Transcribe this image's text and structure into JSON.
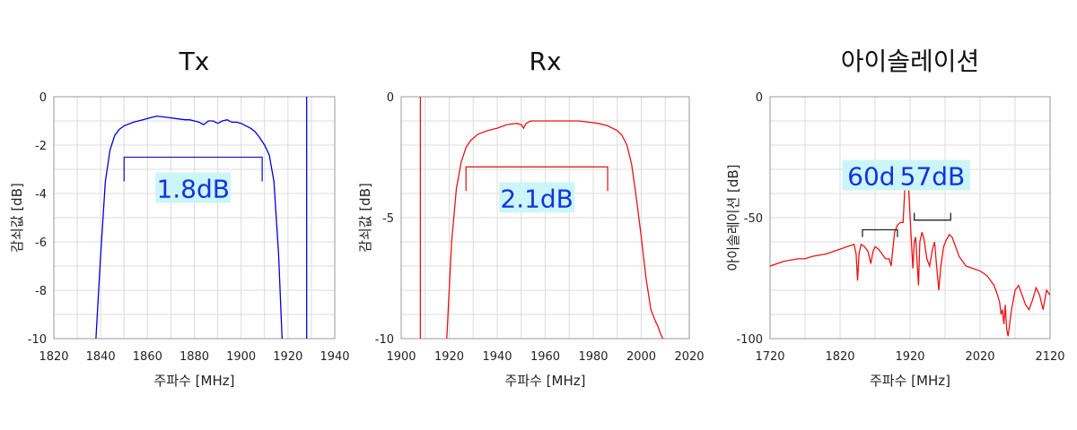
{
  "chart_data": [
    {
      "type": "line",
      "title": "Tx",
      "xlabel": "주파수 [MHz]",
      "ylabel": "감쇠값 [dB]",
      "xlim": [
        1820,
        1940
      ],
      "ylim": [
        -10,
        0
      ],
      "xticks": [
        1820,
        1840,
        1860,
        1880,
        1900,
        1920,
        1940
      ],
      "yticks": [
        0,
        -2,
        -4,
        -6,
        -8,
        -10
      ],
      "ytick_labels": [
        "0",
        "-2",
        "-4",
        "-6",
        "-8",
        "-10"
      ],
      "color": "#0000dd",
      "series": [
        {
          "x": [
            1838,
            1840,
            1842,
            1844,
            1846,
            1848,
            1850,
            1854,
            1858,
            1862,
            1864,
            1868,
            1872,
            1876,
            1878,
            1880,
            1882,
            1884,
            1886,
            1888,
            1890,
            1892,
            1894,
            1896,
            1898,
            1900,
            1902,
            1904,
            1906,
            1908,
            1910,
            1912,
            1914,
            1916,
            1917.5
          ],
          "y": [
            -10,
            -6.5,
            -3.5,
            -2.2,
            -1.6,
            -1.35,
            -1.2,
            -1.05,
            -0.95,
            -0.85,
            -0.8,
            -0.85,
            -0.9,
            -0.95,
            -0.95,
            -1.0,
            -1.05,
            -1.15,
            -1.0,
            -1.0,
            -1.1,
            -1.0,
            -0.95,
            -1.05,
            -1.05,
            -1.1,
            -1.2,
            -1.3,
            -1.45,
            -1.7,
            -2.0,
            -2.4,
            -3.5,
            -6.5,
            -10
          ]
        },
        {
          "x": [
            1928,
            1928
          ],
          "y": [
            -10,
            0
          ]
        }
      ],
      "annotation": {
        "text": "1.8dB",
        "x": [
          1850,
          1909
        ],
        "y": -2.5,
        "drop": 1.0
      }
    },
    {
      "type": "line",
      "title": "Rx",
      "xlabel": "주파수 [MHz]",
      "ylabel": "감쇠값 [dB]",
      "xlim": [
        1900,
        2020
      ],
      "ylim": [
        -10,
        0
      ],
      "xticks": [
        1900,
        1920,
        1940,
        1960,
        1980,
        2000,
        2020
      ],
      "yticks": [
        0,
        -5,
        -10
      ],
      "ytick_labels": [
        "0",
        "-5",
        "-10"
      ],
      "color": "#ee1111",
      "series": [
        {
          "x": [
            1908,
            1908
          ],
          "y": [
            -10,
            0
          ]
        },
        {
          "x": [
            1919,
            1921,
            1923,
            1925,
            1927,
            1929,
            1932,
            1936,
            1940,
            1944,
            1948,
            1950,
            1951,
            1952,
            1954,
            1958,
            1962,
            1966,
            1970,
            1974,
            1978,
            1982,
            1986,
            1990,
            1992,
            1994,
            1996,
            1998,
            2000,
            2002,
            2004,
            2006,
            2007,
            2008,
            2009
          ],
          "y": [
            -10,
            -6.0,
            -3.8,
            -2.7,
            -2.1,
            -1.8,
            -1.55,
            -1.4,
            -1.3,
            -1.15,
            -1.1,
            -1.15,
            -1.3,
            -1.1,
            -1.0,
            -1.0,
            -1.0,
            -1.0,
            -1.0,
            -1.0,
            -1.05,
            -1.1,
            -1.2,
            -1.4,
            -1.6,
            -2.0,
            -2.8,
            -4.2,
            -5.8,
            -7.5,
            -8.8,
            -9.3,
            -9.5,
            -9.8,
            -10
          ]
        }
      ],
      "annotation": {
        "text": "2.1dB",
        "x": [
          1927,
          1986
        ],
        "y": -2.9,
        "drop": 1.0
      }
    },
    {
      "type": "line",
      "title": "아이솔레이션",
      "xlabel": "주파수 [MHz]",
      "ylabel": "아이솔레이션 [dB]",
      "xlim": [
        1720,
        2120
      ],
      "ylim": [
        -100,
        0
      ],
      "xticks": [
        1720,
        1820,
        1920,
        2020,
        2120
      ],
      "yticks": [
        0,
        -50,
        -100
      ],
      "ytick_labels": [
        "0",
        "-50",
        "-100"
      ],
      "color": "#ee1111",
      "series": [
        {
          "x": [
            1720,
            1740,
            1760,
            1770,
            1780,
            1800,
            1820,
            1830,
            1840,
            1843,
            1845,
            1847,
            1850,
            1855,
            1860,
            1864,
            1867,
            1870,
            1875,
            1880,
            1885,
            1890,
            1893,
            1895,
            1898,
            1902,
            1906,
            1910,
            1913,
            1916,
            1918,
            1921,
            1924,
            1926,
            1928,
            1930,
            1932,
            1934,
            1937,
            1940,
            1944,
            1948,
            1952,
            1955,
            1958,
            1961,
            1964,
            1968,
            1972,
            1976,
            1980,
            1985,
            1990,
            2000,
            2010,
            2020,
            2030,
            2040,
            2045,
            2048,
            2050,
            2052,
            2054,
            2056,
            2058,
            2060,
            2065,
            2070,
            2075,
            2080,
            2085,
            2090,
            2095,
            2100,
            2105,
            2110,
            2115,
            2120
          ],
          "y": [
            -70,
            -68,
            -67,
            -67,
            -66,
            -65,
            -63,
            -62,
            -61,
            -65,
            -76,
            -65,
            -61,
            -62,
            -64,
            -69,
            -64,
            -62,
            -63,
            -65,
            -67,
            -67,
            -70,
            -64,
            -56,
            -53,
            -52,
            -52,
            -36,
            -33,
            -38,
            -55,
            -71,
            -60,
            -58,
            -68,
            -78,
            -60,
            -56,
            -59,
            -67,
            -70,
            -63,
            -60,
            -70,
            -80,
            -70,
            -62,
            -59,
            -57,
            -58,
            -62,
            -66,
            -70,
            -71,
            -72,
            -74,
            -78,
            -82,
            -85,
            -90,
            -88,
            -94,
            -86,
            -96,
            -99,
            -88,
            -80,
            -78,
            -82,
            -86,
            -88,
            -84,
            -79,
            -82,
            -88,
            -80,
            -82
          ]
        }
      ],
      "annotations": [
        {
          "text": "60dB",
          "x": [
            1852,
            1902
          ],
          "y": -55,
          "drop": 3
        },
        {
          "text": "57dB",
          "x": [
            1926,
            1978
          ],
          "y": -51,
          "drop": -3
        }
      ]
    }
  ]
}
